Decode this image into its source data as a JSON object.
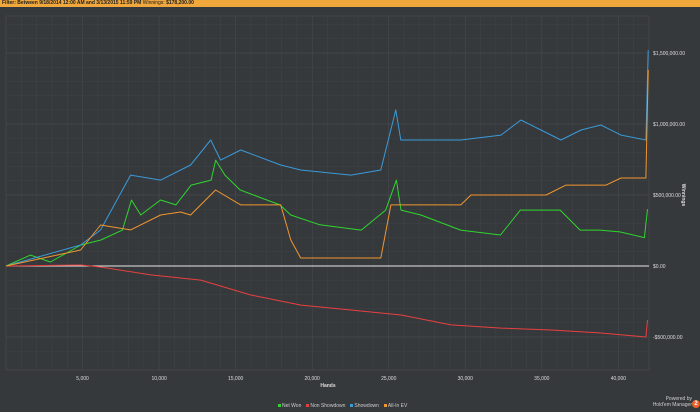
{
  "filter": {
    "label": "Filter:",
    "range": "Between 9/18/2014 12:00 AM and 3/13/2015 11:59 PM",
    "winnings_label": "Winnings:",
    "winnings": "$178,200.00"
  },
  "branding": {
    "powered": "Powered by",
    "product": "Hold'em Manager",
    "badge": "2"
  },
  "chart_data": {
    "type": "line",
    "xlabel": "Hands",
    "ylabel": "Winnings",
    "xlim": [
      0,
      42000
    ],
    "ylim": [
      -750000,
      1750000
    ],
    "xticks": [
      5000,
      10000,
      15000,
      20000,
      25000,
      30000,
      35000,
      40000
    ],
    "xtick_labels": [
      "5,000",
      "10,000",
      "15,000",
      "20,000",
      "25,000",
      "30,000",
      "35,000",
      "40,000"
    ],
    "yticks": [
      -500000,
      0,
      500000,
      1000000,
      1500000
    ],
    "ytick_labels": [
      "-$500,000.00",
      "$0.00",
      "$500,000.00",
      "$1,000,000.00",
      "$1,500,000.00"
    ],
    "grid": true,
    "legend": "bottom",
    "series": [
      {
        "name": "Net Won",
        "color": "#2ed52e",
        "points": [
          [
            0,
            0
          ],
          [
            1600,
            77000
          ],
          [
            2900,
            28000
          ],
          [
            4900,
            148000
          ],
          [
            6200,
            183000
          ],
          [
            7600,
            253000
          ],
          [
            8200,
            465000
          ],
          [
            8800,
            359000
          ],
          [
            10100,
            465000
          ],
          [
            11100,
            430000
          ],
          [
            12100,
            570000
          ],
          [
            13400,
            605000
          ],
          [
            13700,
            746000
          ],
          [
            14300,
            640000
          ],
          [
            15300,
            535000
          ],
          [
            17900,
            430000
          ],
          [
            18600,
            359000
          ],
          [
            20500,
            290000
          ],
          [
            23200,
            253000
          ],
          [
            24800,
            394000
          ],
          [
            25500,
            605000
          ],
          [
            25800,
            394000
          ],
          [
            27100,
            359000
          ],
          [
            29700,
            253000
          ],
          [
            32300,
            218000
          ],
          [
            33600,
            394000
          ],
          [
            34900,
            394000
          ],
          [
            36200,
            394000
          ],
          [
            37500,
            253000
          ],
          [
            38800,
            253000
          ],
          [
            40100,
            240000
          ],
          [
            41700,
            200000
          ],
          [
            41900,
            400000
          ]
        ]
      },
      {
        "name": "Non Showdown",
        "color": "#e84040",
        "points": [
          [
            0,
            0
          ],
          [
            4870,
            7000
          ],
          [
            6180,
            -7000
          ],
          [
            9450,
            -63000
          ],
          [
            12720,
            -99000
          ],
          [
            15990,
            -204000
          ],
          [
            19260,
            -275000
          ],
          [
            22530,
            -310000
          ],
          [
            25800,
            -345000
          ],
          [
            29070,
            -415000
          ],
          [
            32340,
            -437000
          ],
          [
            35610,
            -451000
          ],
          [
            38880,
            -472000
          ],
          [
            41800,
            -500000
          ],
          [
            41900,
            -380000
          ]
        ]
      },
      {
        "name": "Showdown",
        "color": "#3a9ad9",
        "points": [
          [
            0,
            0
          ],
          [
            4870,
            148000
          ],
          [
            6180,
            254000
          ],
          [
            8140,
            640000
          ],
          [
            10100,
            605000
          ],
          [
            12060,
            711000
          ],
          [
            13370,
            887000
          ],
          [
            14020,
            746000
          ],
          [
            15330,
            817000
          ],
          [
            17940,
            711000
          ],
          [
            19250,
            676000
          ],
          [
            22520,
            640000
          ],
          [
            24480,
            676000
          ],
          [
            25460,
            1099000
          ],
          [
            25790,
            887000
          ],
          [
            27100,
            887000
          ],
          [
            29710,
            887000
          ],
          [
            32330,
            922000
          ],
          [
            33630,
            1028000
          ],
          [
            34940,
            958000
          ],
          [
            36250,
            887000
          ],
          [
            37560,
            958000
          ],
          [
            38860,
            993000
          ],
          [
            40170,
            922000
          ],
          [
            41800,
            887000
          ],
          [
            41950,
            1520000
          ]
        ]
      },
      {
        "name": "All-In EV",
        "color": "#f0962e",
        "points": [
          [
            0,
            0
          ],
          [
            4870,
            113000
          ],
          [
            6180,
            289000
          ],
          [
            8140,
            254000
          ],
          [
            10100,
            359000
          ],
          [
            11400,
            380000
          ],
          [
            12060,
            359000
          ],
          [
            13690,
            535000
          ],
          [
            15330,
            430000
          ],
          [
            17940,
            430000
          ],
          [
            18600,
            183000
          ],
          [
            19250,
            56000
          ],
          [
            24480,
            56000
          ],
          [
            25140,
            430000
          ],
          [
            25790,
            430000
          ],
          [
            29710,
            430000
          ],
          [
            30370,
            500000
          ],
          [
            35280,
            500000
          ],
          [
            36580,
            570000
          ],
          [
            39200,
            570000
          ],
          [
            40170,
            620000
          ],
          [
            41800,
            620000
          ],
          [
            41950,
            1380000
          ]
        ]
      }
    ]
  }
}
